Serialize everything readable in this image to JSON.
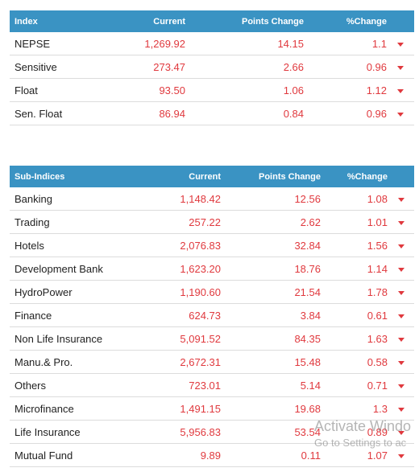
{
  "index_table": {
    "headers": [
      "Index",
      "Current",
      "Points Change",
      "%Change"
    ],
    "rows": [
      {
        "name": "NEPSE",
        "current": "1,269.92",
        "points": "14.15",
        "percent": "1.1",
        "trend": "down-arrow-icon"
      },
      {
        "name": "Sensitive",
        "current": "273.47",
        "points": "2.66",
        "percent": "0.96",
        "trend": "down-arrow-icon"
      },
      {
        "name": "Float",
        "current": "93.50",
        "points": "1.06",
        "percent": "1.12",
        "trend": "down-arrow-icon"
      },
      {
        "name": "Sen. Float",
        "current": "86.94",
        "points": "0.84",
        "percent": "0.96",
        "trend": "down-arrow-icon"
      }
    ]
  },
  "subindex_table": {
    "headers": [
      "Sub-Indices",
      "Current",
      "Points Change",
      "%Change"
    ],
    "rows": [
      {
        "name": "Banking",
        "current": "1,148.42",
        "points": "12.56",
        "percent": "1.08",
        "trend": "down-arrow-icon"
      },
      {
        "name": "Trading",
        "current": "257.22",
        "points": "2.62",
        "percent": "1.01",
        "trend": "down-arrow-icon"
      },
      {
        "name": "Hotels",
        "current": "2,076.83",
        "points": "32.84",
        "percent": "1.56",
        "trend": "down-arrow-icon"
      },
      {
        "name": "Development Bank",
        "current": "1,623.20",
        "points": "18.76",
        "percent": "1.14",
        "trend": "down-arrow-icon"
      },
      {
        "name": "HydroPower",
        "current": "1,190.60",
        "points": "21.54",
        "percent": "1.78",
        "trend": "down-arrow-icon"
      },
      {
        "name": "Finance",
        "current": "624.73",
        "points": "3.84",
        "percent": "0.61",
        "trend": "down-arrow-icon"
      },
      {
        "name": "Non Life Insurance",
        "current": "5,091.52",
        "points": "84.35",
        "percent": "1.63",
        "trend": "down-arrow-icon"
      },
      {
        "name": "Manu.& Pro.",
        "current": "2,672.31",
        "points": "15.48",
        "percent": "0.58",
        "trend": "down-arrow-icon"
      },
      {
        "name": "Others",
        "current": "723.01",
        "points": "5.14",
        "percent": "0.71",
        "trend": "down-arrow-icon"
      },
      {
        "name": "Microfinance",
        "current": "1,491.15",
        "points": "19.68",
        "percent": "1.3",
        "trend": "down-arrow-icon"
      },
      {
        "name": "Life Insurance",
        "current": "5,956.83",
        "points": "53.54",
        "percent": "0.89",
        "trend": "down-arrow-icon"
      },
      {
        "name": "Mutual Fund",
        "current": "9.89",
        "points": "0.11",
        "percent": "1.07",
        "trend": "down-arrow-icon"
      }
    ]
  },
  "colors": {
    "header_bg": "#3a93c3",
    "negative": "#e0393e"
  },
  "watermark": {
    "line1": "Activate Windo",
    "line2": "Go to Settings to ac"
  }
}
